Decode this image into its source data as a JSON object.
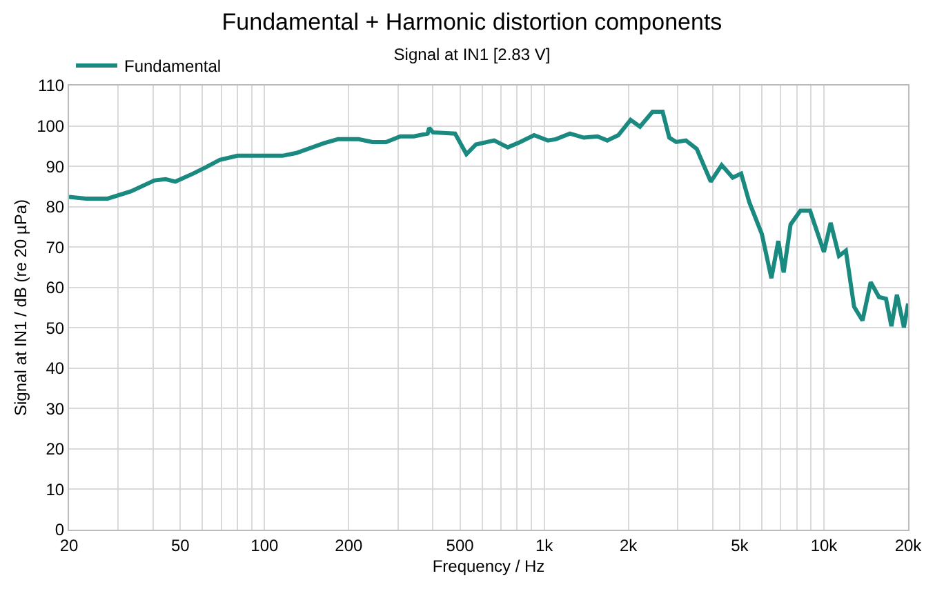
{
  "chart_data": {
    "type": "line",
    "title": "Fundamental + Harmonic distortion components",
    "subtitle": "Signal at IN1 [2.83 V]",
    "xlabel": "Frequency / Hz",
    "ylabel": "Signal at IN1 / dB (re 20 µPa)",
    "log": "x",
    "grid": true,
    "legend": "top left",
    "line_style": "solid",
    "marker": "none",
    "xlim": [
      20,
      20000
    ],
    "ylim": [
      0,
      110
    ],
    "xticks": [
      20,
      {
        "value": 30,
        "label": null
      },
      {
        "value": 40,
        "label": null
      },
      50,
      {
        "value": 60,
        "label": null
      },
      {
        "value": 70,
        "label": null
      },
      {
        "value": 80,
        "label": null
      },
      {
        "value": 90,
        "label": null
      },
      100,
      200,
      {
        "value": 300,
        "label": null
      },
      {
        "value": 400,
        "label": null
      },
      500,
      {
        "value": 600,
        "label": null
      },
      {
        "value": 700,
        "label": null
      },
      {
        "value": 800,
        "label": null
      },
      {
        "value": 900,
        "label": null
      },
      {
        "value": 1000,
        "label": "1k"
      },
      {
        "value": 2000,
        "label": "2k"
      },
      {
        "value": 3000,
        "label": null
      },
      {
        "value": 4000,
        "label": null
      },
      {
        "value": 5000,
        "label": "5k"
      },
      {
        "value": 6000,
        "label": null
      },
      {
        "value": 7000,
        "label": null
      },
      {
        "value": 8000,
        "label": null
      },
      {
        "value": 9000,
        "label": null
      },
      {
        "value": 10000,
        "label": "10k"
      },
      {
        "value": 20000,
        "label": "20k"
      }
    ],
    "yticks": [
      0,
      10,
      20,
      30,
      40,
      50,
      60,
      70,
      80,
      90,
      100,
      110
    ],
    "series": [
      {
        "name": "Fundamental",
        "color": "#1a8a80",
        "x": [
          20,
          23,
          27.5,
          33.3,
          40.4,
          44.3,
          48,
          55.6,
          62.3,
          69.2,
          80,
          116,
          130,
          163,
          183,
          217,
          243,
          272,
          306,
          342,
          383,
          388,
          400,
          480,
          527,
          570,
          662,
          741,
          820,
          920,
          1030,
          1100,
          1236,
          1384,
          1550,
          1680,
          1840,
          2036,
          2200,
          2440,
          2650,
          2800,
          2965,
          3210,
          3510,
          3940,
          4310,
          4720,
          5060,
          5410,
          6000,
          6490,
          6870,
          7180,
          7600,
          8240,
          8920,
          10000,
          10570,
          11320,
          11980,
          12820,
          13740,
          14700,
          15740,
          16670,
          17430,
          18240,
          19320,
          20000
        ],
        "values": [
          82.4,
          82,
          82,
          83.8,
          86.5,
          86.8,
          86.2,
          88.2,
          89.9,
          91.6,
          92.6,
          92.6,
          93.3,
          95.7,
          96.7,
          96.7,
          96,
          96,
          97.4,
          97.4,
          98.1,
          99.5,
          98.4,
          98.1,
          93,
          95.4,
          96.4,
          94.7,
          96,
          97.7,
          96.4,
          96.7,
          98.1,
          97.1,
          97.4,
          96.4,
          97.7,
          101.5,
          99.8,
          103.5,
          103.5,
          97.1,
          96,
          96.4,
          94.3,
          86.2,
          90.3,
          87.2,
          88.2,
          81.1,
          73.2,
          62.3,
          71.5,
          63.7,
          75.6,
          79,
          79,
          68.8,
          76,
          67.8,
          69.1,
          55.2,
          51.8,
          61.3,
          57.6,
          57.2,
          50.4,
          58.2,
          50.1,
          56
        ]
      }
    ]
  }
}
